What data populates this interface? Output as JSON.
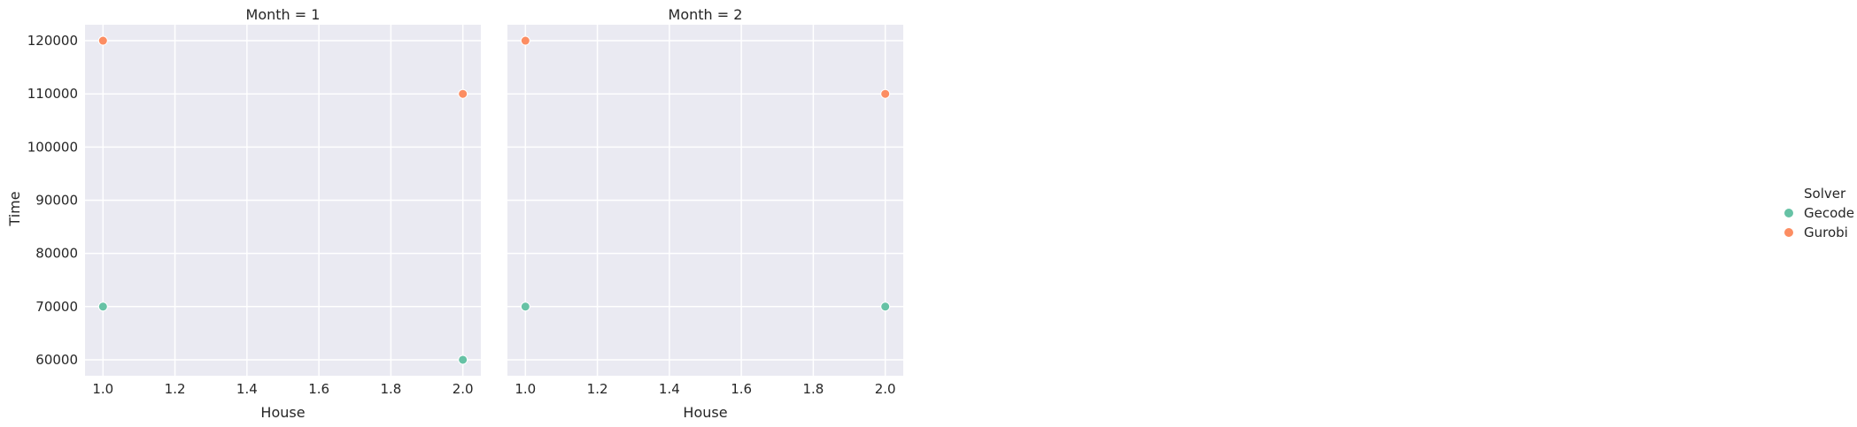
{
  "chart_data": {
    "type": "scatter",
    "xlabel": "House",
    "ylabel": "Time",
    "xlim": [
      0.95,
      2.05
    ],
    "ylim": [
      57000,
      123000
    ],
    "x_ticks": [
      "1.0",
      "1.2",
      "1.4",
      "1.6",
      "1.8",
      "2.0"
    ],
    "x_tick_values": [
      1.0,
      1.2,
      1.4,
      1.6,
      1.8,
      2.0
    ],
    "y_ticks": [
      "60000",
      "70000",
      "80000",
      "90000",
      "100000",
      "110000",
      "120000"
    ],
    "y_tick_values": [
      60000,
      70000,
      80000,
      90000,
      100000,
      110000,
      120000
    ],
    "grid": true,
    "legend": {
      "title": "Solver",
      "placement": "right",
      "entries": [
        {
          "name": "Gecode",
          "color": "#66c2a5"
        },
        {
          "name": "Gurobi",
          "color": "#fc8d62"
        }
      ]
    },
    "facets": [
      {
        "title": "Month = 1",
        "series": [
          {
            "name": "Gecode",
            "points": [
              {
                "x": 1.0,
                "y": 70000
              },
              {
                "x": 2.0,
                "y": 60000
              }
            ]
          },
          {
            "name": "Gurobi",
            "points": [
              {
                "x": 1.0,
                "y": 120000
              },
              {
                "x": 2.0,
                "y": 110000
              }
            ]
          }
        ]
      },
      {
        "title": "Month = 2",
        "series": [
          {
            "name": "Gecode",
            "points": [
              {
                "x": 1.0,
                "y": 70000
              },
              {
                "x": 2.0,
                "y": 70000
              }
            ]
          },
          {
            "name": "Gurobi",
            "points": [
              {
                "x": 1.0,
                "y": 120000
              },
              {
                "x": 2.0,
                "y": 110000
              }
            ]
          }
        ]
      }
    ]
  }
}
